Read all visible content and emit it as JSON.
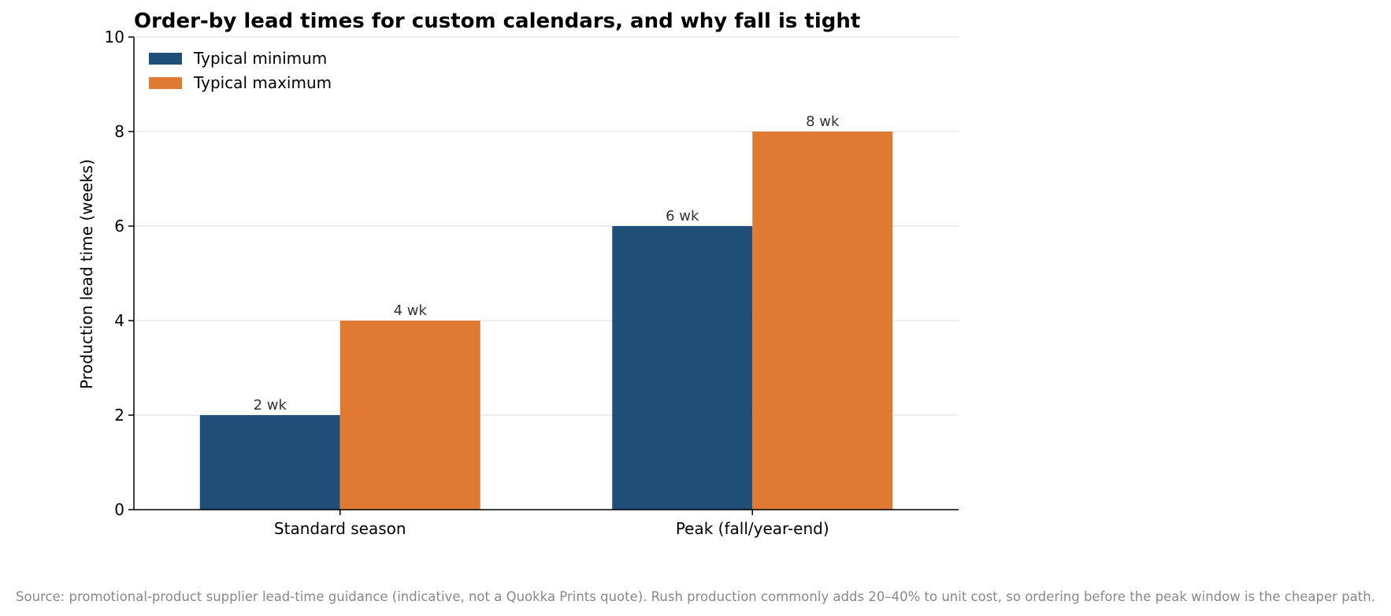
{
  "chart_data": {
    "type": "bar",
    "title": "Order-by lead times for custom calendars, and why fall is tight",
    "xlabel": "",
    "ylabel": "Production lead time (weeks)",
    "categories": [
      "Standard season",
      "Peak (fall/year-end)"
    ],
    "series": [
      {
        "name": "Typical minimum",
        "values": [
          2,
          6
        ],
        "color": "#1f4e79",
        "labels": [
          "2 wk",
          "6 wk"
        ]
      },
      {
        "name": "Typical maximum",
        "values": [
          4,
          8
        ],
        "color": "#e07a32",
        "labels": [
          "4 wk",
          "8 wk"
        ]
      }
    ],
    "ylim": [
      0,
      10
    ],
    "yticks": [
      0,
      2,
      4,
      6,
      8,
      10
    ],
    "grid": true,
    "legend": "top-left"
  },
  "footer": {
    "source": "Source: promotional-product supplier lead-time guidance (indicative, not a Quokka Prints quote). Rush production commonly adds 20–40% to unit cost, so ordering before the peak window is the cheaper path."
  }
}
